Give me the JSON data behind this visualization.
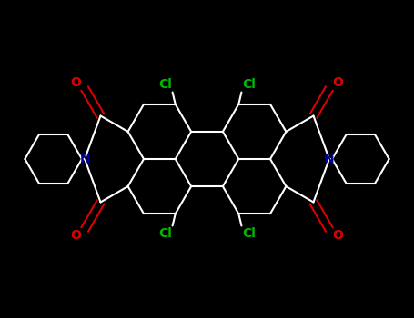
{
  "bg": "#000000",
  "bond_color": "#ffffff",
  "cl_color": "#00bb00",
  "o_color": "#dd0000",
  "n_color": "#000099",
  "figsize": [
    4.55,
    3.5
  ],
  "dpi": 100,
  "xlim": [
    -3.6,
    3.6
  ],
  "ylim": [
    -2.2,
    2.2
  ],
  "bond_lw": 1.5,
  "label_fontsize": 9
}
